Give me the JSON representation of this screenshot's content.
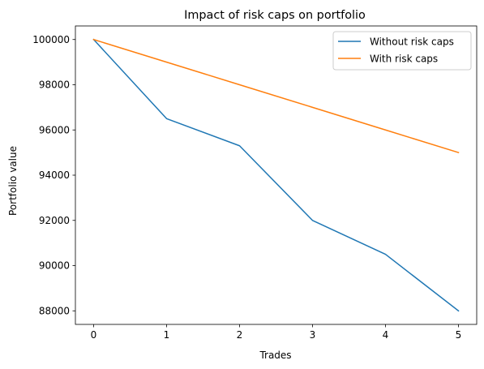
{
  "chart_data": {
    "type": "line",
    "title": "Impact of risk caps on portfolio",
    "xlabel": "Trades",
    "ylabel": "Portfolio value",
    "x": [
      0,
      1,
      2,
      3,
      4,
      5
    ],
    "xlim": [
      -0.25,
      5.25
    ],
    "ylim": [
      87400,
      100600
    ],
    "xticks": [
      0,
      1,
      2,
      3,
      4,
      5
    ],
    "yticks": [
      88000,
      90000,
      92000,
      94000,
      96000,
      98000,
      100000
    ],
    "grid": false,
    "legend_position": "top-right",
    "series": [
      {
        "name": "Without risk caps",
        "color": "#1f77b4",
        "values": [
          100000,
          96500,
          95300,
          92000,
          90500,
          88000
        ]
      },
      {
        "name": "With risk caps",
        "color": "#ff7f0e",
        "values": [
          100000,
          99000,
          98000,
          97000,
          96000,
          95000
        ]
      }
    ]
  }
}
